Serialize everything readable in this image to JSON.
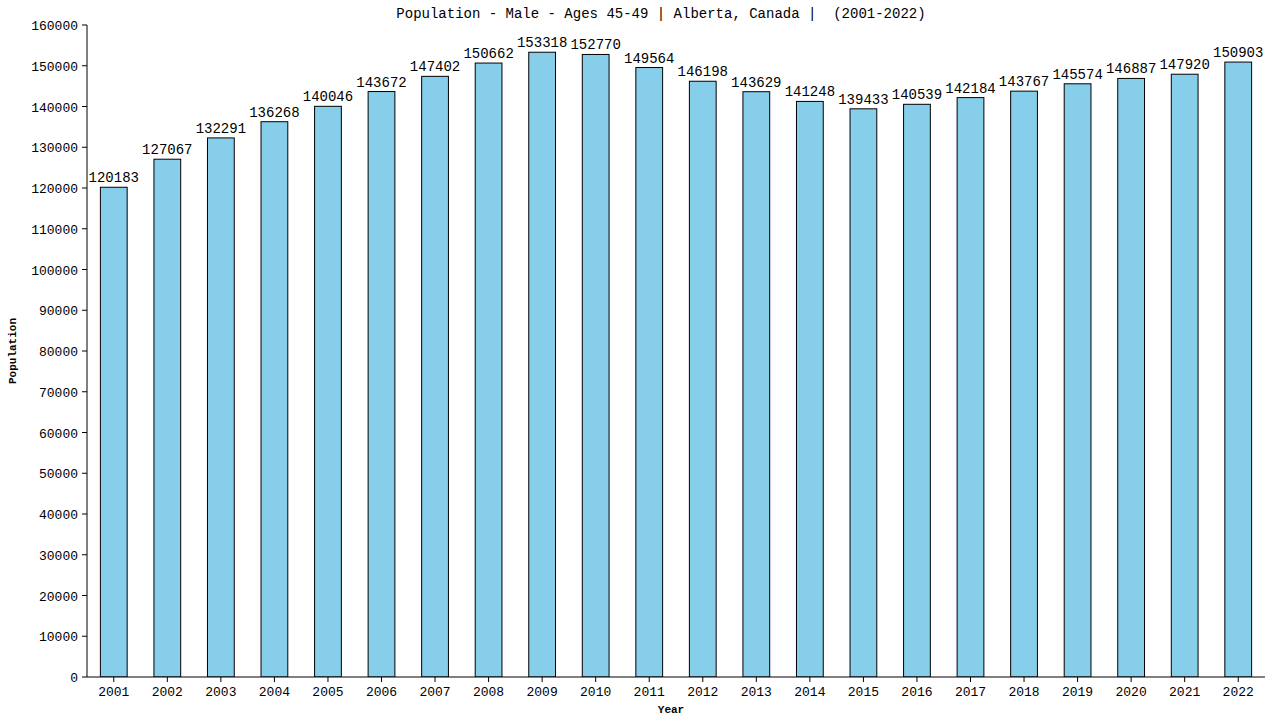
{
  "chart_data": {
    "type": "bar",
    "title": "Population - Male - Ages 45-49 | Alberta, Canada |  (2001-2022)",
    "x_label": "Year",
    "y_label": "Population",
    "categories": [
      "2001",
      "2002",
      "2003",
      "2004",
      "2005",
      "2006",
      "2007",
      "2008",
      "2009",
      "2010",
      "2011",
      "2012",
      "2013",
      "2014",
      "2015",
      "2016",
      "2017",
      "2018",
      "2019",
      "2020",
      "2021",
      "2022"
    ],
    "values": [
      120183,
      127067,
      132291,
      136268,
      140046,
      143672,
      147402,
      150662,
      153318,
      152770,
      149564,
      146198,
      143629,
      141248,
      139433,
      140539,
      142184,
      143767,
      145574,
      146887,
      147920,
      150903
    ],
    "color": "#87ceeb",
    "ylim": [
      0,
      160000
    ],
    "yticks": [
      0,
      10000,
      20000,
      30000,
      40000,
      50000,
      60000,
      70000,
      80000,
      90000,
      100000,
      110000,
      120000,
      130000,
      140000,
      150000,
      160000
    ],
    "grid": false,
    "data_labels": true
  }
}
